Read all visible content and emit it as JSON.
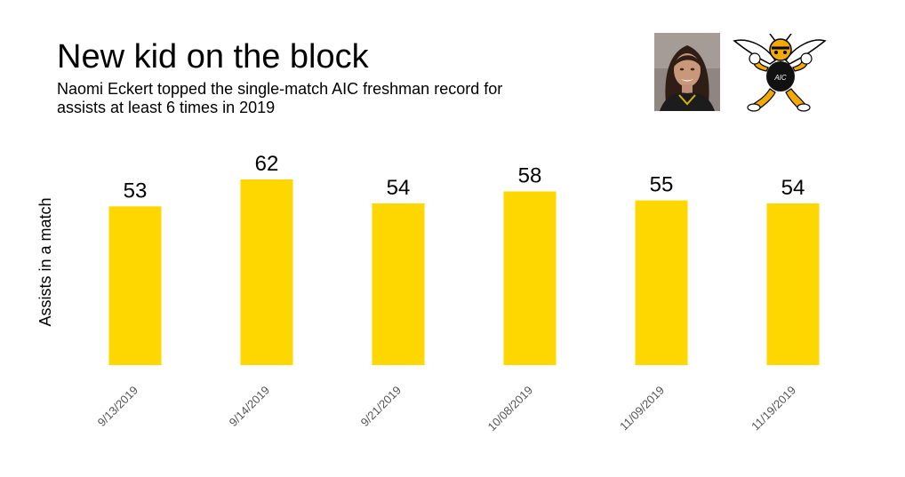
{
  "header": {
    "title": "New kid on the block",
    "subtitle": "Naomi Eckert topped the single-match AIC freshman record for assists at least 6 times in 2019"
  },
  "images": {
    "photo_icon": "player-photo",
    "mascot_icon": "yellow-jacket-mascot-logo",
    "mascot_text": "AIC"
  },
  "colors": {
    "bar": "#FFD700",
    "text": "#000000",
    "tick": "#555555"
  },
  "chart_data": {
    "type": "bar",
    "title": "New kid on the block",
    "subtitle": "Naomi Eckert topped the single-match AIC freshman record for assists at least 6 times in 2019",
    "xlabel": "",
    "ylabel": "Assists in a match",
    "categories": [
      "9/13/2019",
      "9/14/2019",
      "9/21/2019",
      "10/08/2019",
      "11/09/2019",
      "11/19/2019"
    ],
    "values": [
      53,
      62,
      54,
      58,
      55,
      54
    ],
    "ylim": [
      0,
      62
    ],
    "grid": false,
    "legend": "none",
    "data_labels": true
  }
}
